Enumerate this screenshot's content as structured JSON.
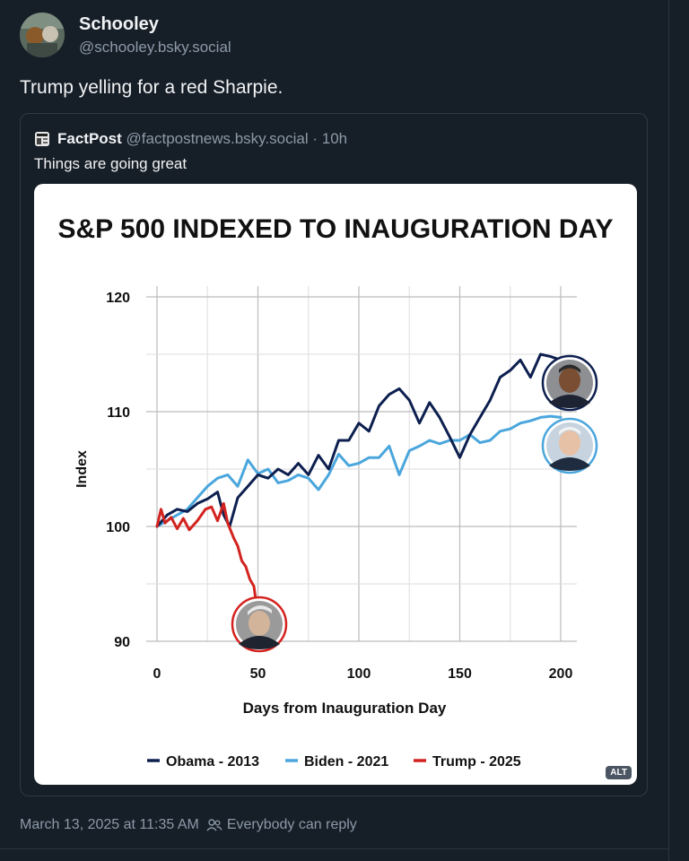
{
  "post": {
    "author_name": "Schooley",
    "author_handle": "@schooley.bsky.social",
    "text": "Trump yelling for a red Sharpie.",
    "timestamp": "March 13, 2025 at 11:35 AM",
    "reply_permission": "Everybody can reply"
  },
  "quote": {
    "author_name": "FactPost",
    "author_handle": "@factpostnews.bsky.social",
    "separator": "·",
    "age": "10h",
    "text": "Things are going great",
    "alt_badge": "ALT"
  },
  "chart_data": {
    "type": "line",
    "title": "S&P 500 INDEXED TO INAUGURATION DAY",
    "xlabel": "Days from Inauguration Day",
    "ylabel": "Index",
    "xlim": [
      0,
      200
    ],
    "ylim": [
      90,
      120
    ],
    "xticks": [
      0,
      50,
      100,
      150,
      200
    ],
    "yticks": [
      90,
      100,
      110,
      120
    ],
    "grid": true,
    "legend_position": "bottom",
    "series": [
      {
        "name": "Obama - 2013",
        "color": "#0d1f4f",
        "x": [
          0,
          5,
          10,
          15,
          20,
          25,
          30,
          33,
          36,
          40,
          45,
          50,
          55,
          60,
          65,
          70,
          75,
          80,
          85,
          90,
          95,
          100,
          105,
          110,
          115,
          120,
          125,
          130,
          135,
          140,
          145,
          150,
          155,
          160,
          165,
          170,
          175,
          180,
          185,
          190,
          195,
          200
        ],
        "y": [
          100,
          101,
          101.5,
          101.3,
          102,
          102.4,
          103,
          101,
          100,
          102.5,
          103.5,
          104.5,
          104.2,
          105,
          104.5,
          105.5,
          104.5,
          106.2,
          105,
          107.5,
          107.5,
          109,
          108.3,
          110.5,
          111.5,
          112,
          111,
          109,
          110.8,
          109.5,
          107.8,
          106,
          108,
          109.5,
          111,
          113,
          113.6,
          114.5,
          113,
          115,
          114.8,
          114.5
        ]
      },
      {
        "name": "Biden - 2021",
        "color": "#4aa6dc",
        "x": [
          0,
          5,
          10,
          15,
          20,
          25,
          30,
          35,
          40,
          45,
          50,
          55,
          60,
          65,
          70,
          75,
          80,
          85,
          90,
          95,
          100,
          105,
          110,
          115,
          120,
          125,
          130,
          135,
          140,
          145,
          150,
          155,
          160,
          165,
          170,
          175,
          180,
          185,
          190,
          195,
          200
        ],
        "y": [
          100,
          100.5,
          101,
          101.5,
          102.5,
          103.5,
          104.2,
          104.5,
          103.5,
          105.8,
          104.6,
          105,
          103.8,
          104,
          104.5,
          104.2,
          103.2,
          104.5,
          106.3,
          105.3,
          105.5,
          106,
          106,
          107,
          104.5,
          106.6,
          107,
          107.5,
          107.2,
          107.5,
          107.5,
          108,
          107.3,
          107.5,
          108.3,
          108.5,
          109,
          109.2,
          109.5,
          109.6,
          109.5
        ]
      },
      {
        "name": "Trump - 2025",
        "color": "#d3231f",
        "x": [
          0,
          2,
          4,
          7,
          10,
          13,
          16,
          20,
          24,
          27,
          30,
          33,
          35,
          38,
          40,
          42,
          44,
          46,
          48,
          49
        ],
        "y": [
          100,
          101.5,
          100.3,
          100.8,
          99.8,
          100.7,
          99.7,
          100.5,
          101.5,
          101.7,
          100.5,
          102,
          100.3,
          99,
          98.3,
          97,
          96.5,
          95.4,
          94.8,
          93.5
        ]
      }
    ]
  },
  "icons": {
    "reply_permission": "people-icon",
    "quote_logo": "factpost-logo-icon",
    "avatar": "user-avatar-photo",
    "chart_badges": [
      "obama-portrait-badge",
      "biden-portrait-badge",
      "trump-portrait-badge"
    ]
  }
}
